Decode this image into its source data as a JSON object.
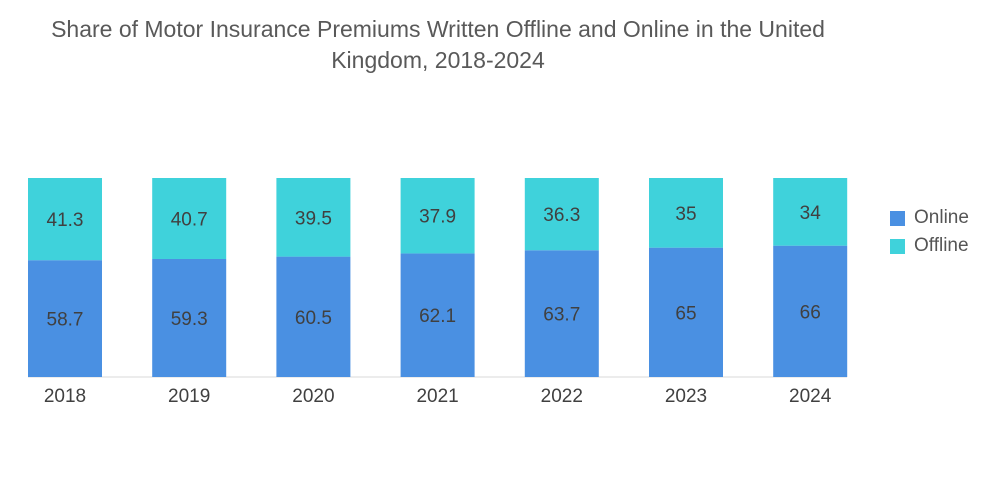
{
  "chart_data": {
    "type": "bar",
    "stacked": true,
    "normalized": true,
    "title": "Share of Motor Insurance Premiums Written Offline and Online in the United\nKingdom, 2018-2024",
    "xlabel": "",
    "ylabel": "",
    "ylim": [
      0,
      100
    ],
    "grid": false,
    "legend_position": "right",
    "categories": [
      "2018",
      "2019",
      "2020",
      "2021",
      "2022",
      "2023",
      "2024"
    ],
    "series": [
      {
        "name": "Online",
        "color": "#4a90e2",
        "values": [
          58.7,
          59.3,
          60.5,
          62.1,
          63.7,
          65,
          66
        ]
      },
      {
        "name": "Offline",
        "color": "#3fd2db",
        "values": [
          41.3,
          40.7,
          39.5,
          37.9,
          36.3,
          35,
          34
        ]
      }
    ]
  }
}
